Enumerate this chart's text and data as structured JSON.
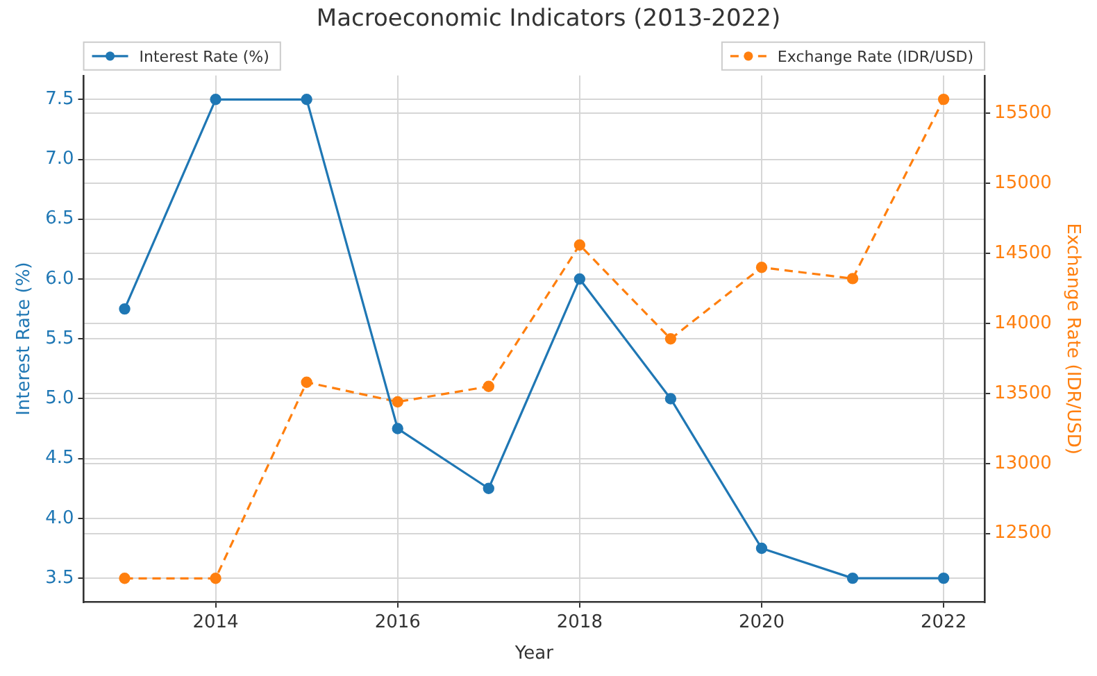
{
  "chart_data": {
    "type": "line",
    "title": "Macroeconomic Indicators (2013-2022)",
    "xlabel": "Year",
    "ylabel": "Interest Rate (%)",
    "y2label": "Exchange Rate (IDR/USD)",
    "x": [
      2013,
      2014,
      2015,
      2016,
      2017,
      2018,
      2019,
      2020,
      2021,
      2022
    ],
    "series": [
      {
        "name": "Interest Rate (%)",
        "color": "#1f77b4",
        "values": [
          5.75,
          7.5,
          7.5,
          4.75,
          4.25,
          6.0,
          5.0,
          3.75,
          3.5,
          3.5
        ],
        "line_style": "solid"
      },
      {
        "name": "Exchange Rate (IDR/USD)",
        "color": "#ff7f0e",
        "values": [
          12180,
          12180,
          13580,
          13440,
          13550,
          14560,
          13890,
          14400,
          14320,
          15600
        ],
        "axis": "y2",
        "line_style": "dashed"
      }
    ],
    "xlim": [
      2012.55,
      2022.45
    ],
    "xticks": [
      2014,
      2016,
      2018,
      2020,
      2022
    ],
    "ylim": [
      3.3,
      7.7
    ],
    "yticks": [
      {
        "value": 3.5,
        "label": "3.5"
      },
      {
        "value": 4,
        "label": "4.0"
      },
      {
        "value": 4.5,
        "label": "4.5"
      },
      {
        "value": 5,
        "label": "5.0"
      },
      {
        "value": 5.5,
        "label": "5.5"
      },
      {
        "value": 6,
        "label": "6.0"
      },
      {
        "value": 6.5,
        "label": "6.5"
      },
      {
        "value": 7,
        "label": "7.0"
      },
      {
        "value": 7.5,
        "label": "7.5"
      }
    ],
    "y2lim": [
      12010,
      15770
    ],
    "y2ticks": [
      12500,
      13000,
      13500,
      14000,
      14500,
      15000,
      15500
    ],
    "grid": true,
    "legend": "top",
    "marker": "circle"
  }
}
